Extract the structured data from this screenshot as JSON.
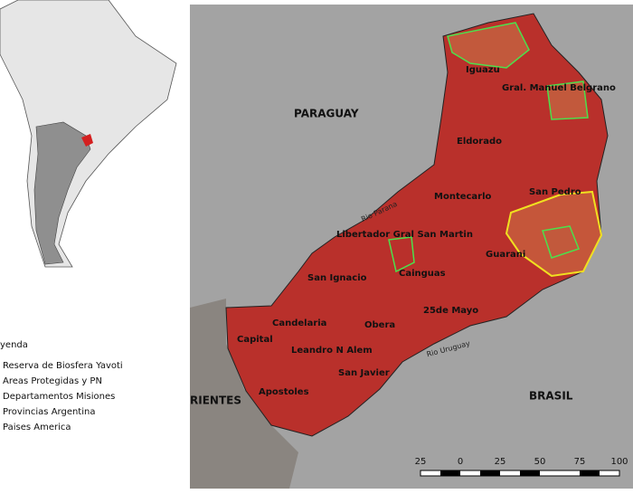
{
  "countries": [
    "PARAGUAY",
    "BRASIL",
    "RIENTES"
  ],
  "rivers": [
    "Rio Parana",
    "Rio Uruguay"
  ],
  "departments": [
    "Iguazu",
    "Gral. Manuel Belgrano",
    "Eldorado",
    "Montecarlo",
    "San Pedro",
    "Libertador Gral San Martin",
    "Guarani",
    "San Ignacio",
    "Cainguas",
    "25de Mayo",
    "Candelaria",
    "Obera",
    "Capital",
    "Leandro N Alem",
    "San Javier",
    "Apostoles"
  ],
  "legend": {
    "title": "yenda",
    "items": [
      "Reserva de Biosfera Yavoti",
      "Areas Protegidas y PN",
      "Departamentos Misiones",
      "Provincias Argentina",
      "Paises America"
    ]
  },
  "scale_bar": {
    "labels": [
      "25",
      "0",
      "25",
      "50",
      "75",
      "100"
    ]
  }
}
